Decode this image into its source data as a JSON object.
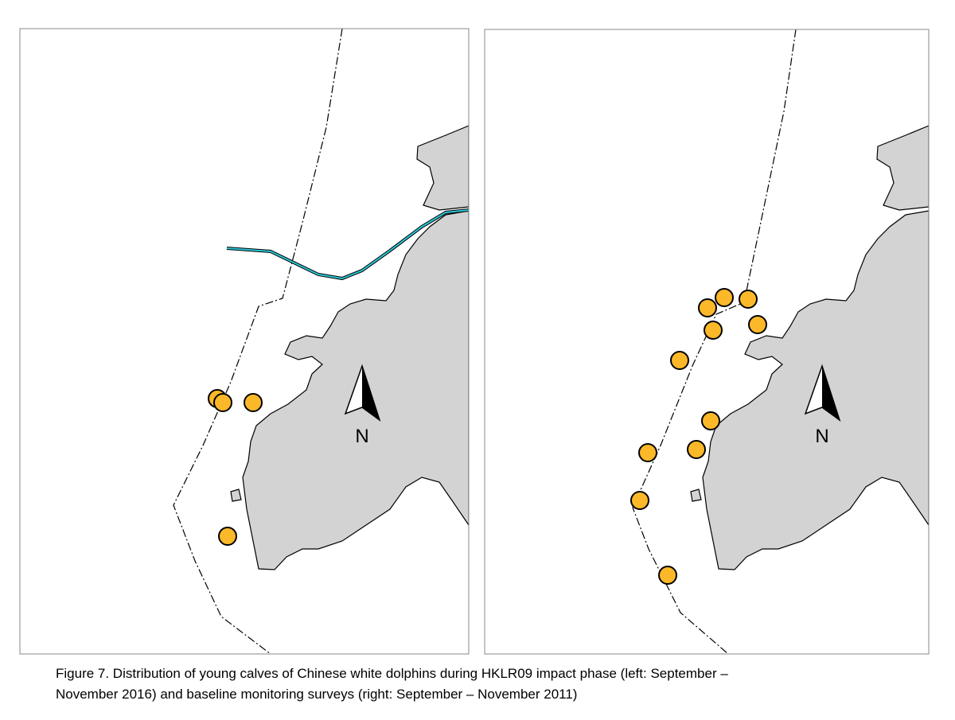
{
  "panels": [
    {
      "north_label": "N"
    },
    {
      "north_label": "N"
    }
  ],
  "caption": {
    "lines": [
      "Figure 7.  Distribution of young calves of Chinese white dolphins during HKLR09 impact phase (left: September –",
      "November 2016) and baseline monitoring surveys (right: September – November 2011)"
    ]
  }
}
